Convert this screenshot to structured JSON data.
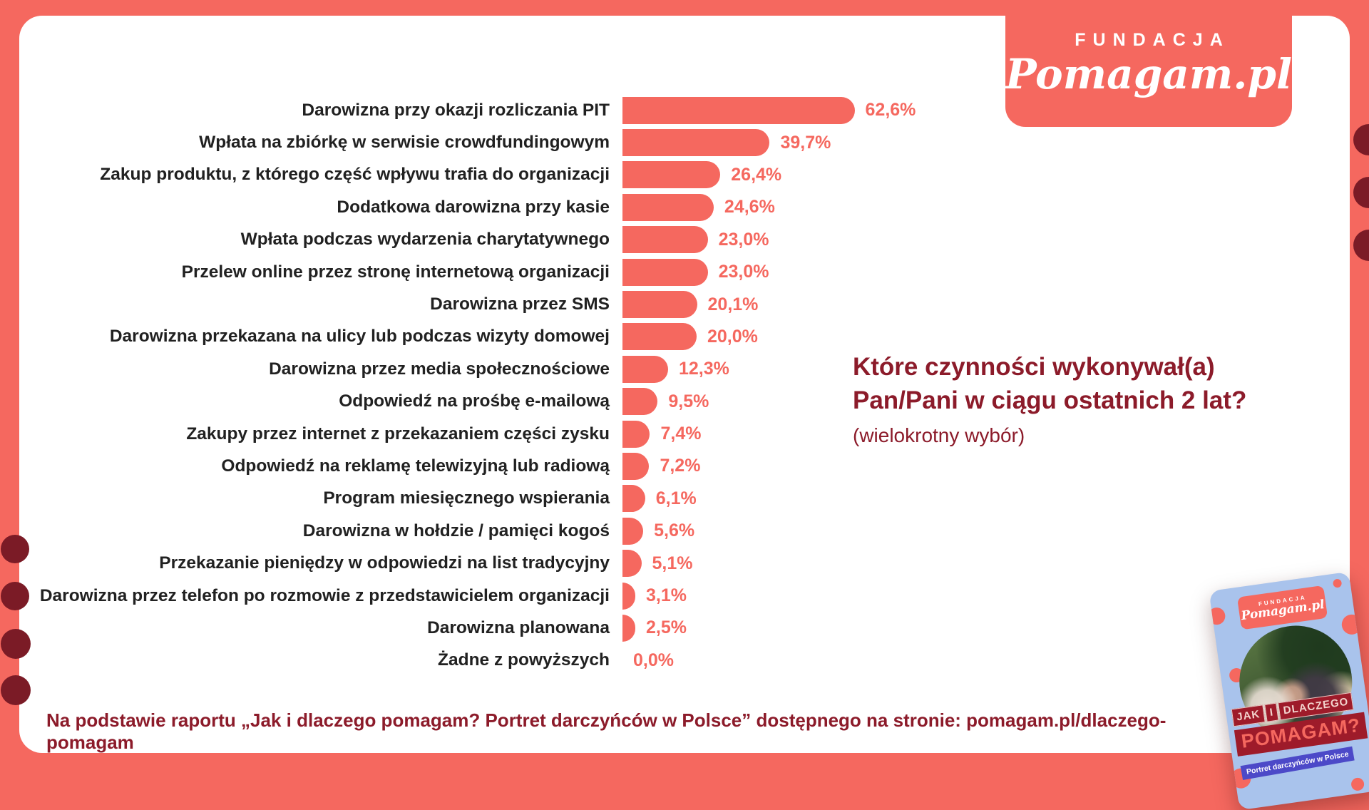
{
  "logo": {
    "line1": "FUNDACJA",
    "line2": "Pomagam.pl"
  },
  "question": {
    "line1": "Które czynności wykonywał(a)",
    "line2": "Pan/Pani w ciągu ostatnich 2 lat?",
    "note": "(wielokrotny wybór)"
  },
  "footer": {
    "text": "Na podstawie raportu „Jak i dlaczego pomagam? Portret darczyńców w Polsce” dostępnego na stronie: pomagam.pl/dlaczego-pomagam"
  },
  "chart_data": {
    "type": "bar",
    "orientation": "horizontal",
    "title": "Które czynności wykonywał(a) Pan/Pani w ciągu ostatnich 2 lat? (wielokrotny wybór)",
    "xlim": [
      0,
      70
    ],
    "grid": false,
    "bar_color": "#f5685f",
    "value_label_format": "comma-decimal-percent",
    "categories": [
      "Darowizna przy okazji rozliczania PIT",
      "Wpłata na zbiórkę w serwisie crowdfundingowym",
      "Zakup produktu, z którego część wpływu trafia do organizacji",
      "Dodatkowa darowizna przy kasie",
      "Wpłata podczas wydarzenia charytatywnego",
      "Przelew online przez stronę internetową organizacji",
      "Darowizna przez SMS",
      "Darowizna przekazana na ulicy lub podczas wizyty domowej",
      "Darowizna przez media społecznościowe",
      "Odpowiedź na prośbę e-mailową",
      "Zakupy przez internet z przekazaniem części zysku",
      "Odpowiedź na reklamę telewizyjną lub radiową",
      "Program miesięcznego wspierania",
      "Darowizna w hołdzie / pamięci kogoś",
      "Przekazanie pieniędzy w odpowiedzi na list tradycyjny",
      "Darowizna przez telefon po rozmowie z przedstawicielem organizacji",
      "Darowizna planowana",
      "Żadne z powyższych"
    ],
    "values": [
      62.6,
      39.7,
      26.4,
      24.6,
      23.0,
      23.0,
      20.1,
      20.0,
      12.3,
      9.5,
      7.4,
      7.2,
      6.1,
      5.6,
      5.1,
      3.1,
      2.5,
      0.0
    ],
    "value_labels": [
      "62,6%",
      "39,7%",
      "26,4%",
      "24,6%",
      "23,0%",
      "23,0%",
      "20,1%",
      "20,0%",
      "12,3%",
      "9,5%",
      "7,4%",
      "7,2%",
      "6,1%",
      "5,6%",
      "5,1%",
      "3,1%",
      "2,5%",
      "0,0%"
    ]
  },
  "report_card": {
    "badge_line1": "FUNDACJA",
    "badge_line2": "Pomagam.pl",
    "banner_words": [
      "JAK",
      "I",
      "DLACZEGO"
    ],
    "banner_main": "POMAGAM?",
    "banner_sub": "Portret darczyńców w Polsce"
  },
  "colors": {
    "coral": "#f5685f",
    "dark_maroon_text": "#8c1b2a",
    "edge_circle": "#7b1b26",
    "report_card_bg": "#a9c3ec",
    "report_banner_red": "#9e1b2a",
    "report_banner_indigo": "#4c49c8",
    "label_text": "#212121",
    "card_bg": "#ffffff"
  }
}
